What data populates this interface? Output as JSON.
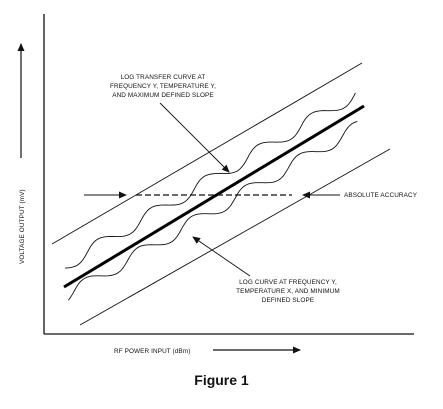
{
  "figure": {
    "caption": "Figure 1",
    "y_axis_label": "VOLTAGE OUTPUT (mV)",
    "x_axis_label": "RF POWER INPUT (dBm)",
    "callouts": {
      "upper": [
        "LOG TRANSFER CURVE AT",
        "FREQUENCY Y, TEMPERATURE Y,",
        "AND MAXIMUM DEFINED SLOPE"
      ],
      "lower": [
        "LOG CURVE AT FREQUENCY Y,",
        "TEMPERATURE X, AND MINIMUM",
        "DEFINED SLOPE"
      ],
      "accuracy": "ABSOLUTE ACCURACY"
    }
  }
}
